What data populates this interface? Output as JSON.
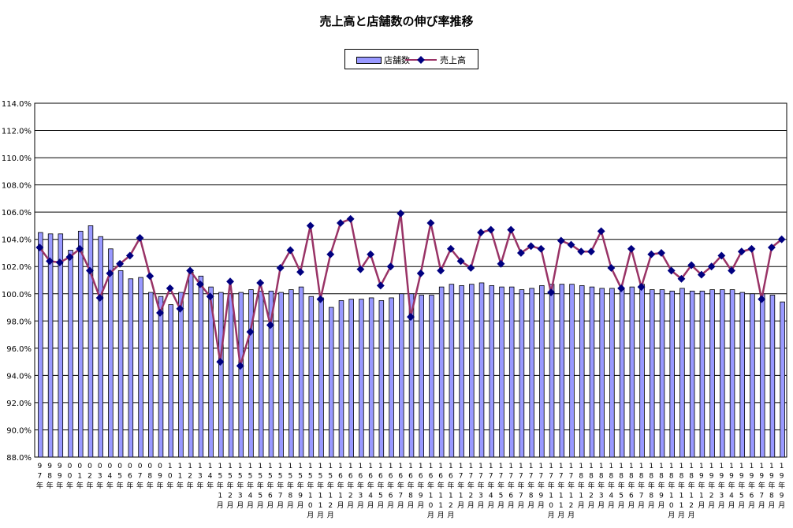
{
  "title": "売上高と店舗数の伸び率推移",
  "colors": {
    "bar_fill": "#9999ff",
    "bar_stroke": "#000000",
    "line": "#993366",
    "marker": "#000080"
  },
  "legend": {
    "bars_label": "店舗数",
    "line_label": "売上高"
  },
  "chart_data": {
    "type": "bar",
    "title": "売上高と店舗数の伸び率推移",
    "xlabel": "",
    "ylabel": "",
    "ylim": [
      88.0,
      114.0
    ],
    "y_tick_step": 2.0,
    "y_tick_labels": [
      "88.0%",
      "90.0%",
      "92.0%",
      "94.0%",
      "96.0%",
      "98.0%",
      "100.0%",
      "102.0%",
      "104.0%",
      "106.0%",
      "108.0%",
      "110.0%",
      "112.0%",
      "114.0%"
    ],
    "grid": true,
    "legend_position": "top-center",
    "categories": [
      "97年",
      "98年",
      "99年",
      "00年",
      "01年",
      "02年",
      "03年",
      "04年",
      "05年",
      "06年",
      "07年",
      "08年",
      "09年",
      "10年",
      "11年",
      "12年",
      "13年",
      "14年",
      "15年1月",
      "15年2月",
      "15年3月",
      "15年4月",
      "15年5月",
      "15年6月",
      "15年7月",
      "15年8月",
      "15年9月",
      "15年10月",
      "15年11月",
      "15年12月",
      "16年1月",
      "16年2月",
      "16年3月",
      "16年4月",
      "16年5月",
      "16年6月",
      "16年7月",
      "16年8月",
      "16年9月",
      "16年10月",
      "16年11月",
      "16年12月",
      "17年1月",
      "17年2月",
      "17年3月",
      "17年4月",
      "17年5月",
      "17年6月",
      "17年7月",
      "17年8月",
      "17年9月",
      "17年10月",
      "17年11月",
      "17年12月",
      "18年1月",
      "18年2月",
      "18年3月",
      "18年4月",
      "18年5月",
      "18年6月",
      "18年7月",
      "18年8月",
      "18年9月",
      "18年10月",
      "18年11月",
      "18年12月",
      "19年1月",
      "19年2月",
      "19年3月",
      "19年4月",
      "19年5月",
      "19年6月",
      "19年7月",
      "19年8月",
      "19年9月"
    ],
    "x_tick_labels": [
      [
        "9",
        "7",
        "年"
      ],
      [
        "9",
        "8",
        "年"
      ],
      [
        "9",
        "9",
        "年"
      ],
      [
        "0",
        "0",
        "年"
      ],
      [
        "0",
        "1",
        "年"
      ],
      [
        "0",
        "2",
        "年"
      ],
      [
        "0",
        "3",
        "年"
      ],
      [
        "0",
        "4",
        "年"
      ],
      [
        "0",
        "5",
        "年"
      ],
      [
        "0",
        "6",
        "年"
      ],
      [
        "0",
        "7",
        "年"
      ],
      [
        "0",
        "8",
        "年"
      ],
      [
        "0",
        "9",
        "年"
      ],
      [
        "1",
        "0",
        "年"
      ],
      [
        "1",
        "1",
        "年"
      ],
      [
        "1",
        "2",
        "年"
      ],
      [
        "1",
        "3",
        "年"
      ],
      [
        "1",
        "4",
        "年"
      ],
      [
        "1",
        "5",
        "年",
        "1",
        "月"
      ],
      [
        "1",
        "5",
        "年",
        "2",
        "月"
      ],
      [
        "1",
        "5",
        "年",
        "3",
        "月"
      ],
      [
        "1",
        "5",
        "年",
        "4",
        "月"
      ],
      [
        "1",
        "5",
        "年",
        "5",
        "月"
      ],
      [
        "1",
        "5",
        "年",
        "6",
        "月"
      ],
      [
        "1",
        "5",
        "年",
        "7",
        "月"
      ],
      [
        "1",
        "5",
        "年",
        "8",
        "月"
      ],
      [
        "1",
        "5",
        "年",
        "9",
        "月"
      ],
      [
        "1",
        "5",
        "年",
        "1",
        "0",
        "月"
      ],
      [
        "1",
        "5",
        "年",
        "1",
        "1",
        "月"
      ],
      [
        "1",
        "5",
        "年",
        "1",
        "2",
        "月"
      ],
      [
        "1",
        "6",
        "年",
        "1",
        "月"
      ],
      [
        "1",
        "6",
        "年",
        "2",
        "月"
      ],
      [
        "1",
        "6",
        "年",
        "3",
        "月"
      ],
      [
        "1",
        "6",
        "年",
        "4",
        "月"
      ],
      [
        "1",
        "6",
        "年",
        "5",
        "月"
      ],
      [
        "1",
        "6",
        "年",
        "6",
        "月"
      ],
      [
        "1",
        "6",
        "年",
        "7",
        "月"
      ],
      [
        "1",
        "6",
        "年",
        "8",
        "月"
      ],
      [
        "1",
        "6",
        "年",
        "9",
        "月"
      ],
      [
        "1",
        "6",
        "年",
        "1",
        "0",
        "月"
      ],
      [
        "1",
        "6",
        "年",
        "1",
        "1",
        "月"
      ],
      [
        "1",
        "6",
        "年",
        "1",
        "2",
        "月"
      ],
      [
        "1",
        "7",
        "年",
        "1",
        "月"
      ],
      [
        "1",
        "7",
        "年",
        "2",
        "月"
      ],
      [
        "1",
        "7",
        "年",
        "3",
        "月"
      ],
      [
        "1",
        "7",
        "年",
        "4",
        "月"
      ],
      [
        "1",
        "7",
        "年",
        "5",
        "月"
      ],
      [
        "1",
        "7",
        "年",
        "6",
        "月"
      ],
      [
        "1",
        "7",
        "年",
        "7",
        "月"
      ],
      [
        "1",
        "7",
        "年",
        "8",
        "月"
      ],
      [
        "1",
        "7",
        "年",
        "9",
        "月"
      ],
      [
        "1",
        "7",
        "年",
        "1",
        "0",
        "月"
      ],
      [
        "1",
        "7",
        "年",
        "1",
        "1",
        "月"
      ],
      [
        "1",
        "7",
        "年",
        "1",
        "2",
        "月"
      ],
      [
        "1",
        "8",
        "年",
        "1",
        "月"
      ],
      [
        "1",
        "8",
        "年",
        "2",
        "月"
      ],
      [
        "1",
        "8",
        "年",
        "3",
        "月"
      ],
      [
        "1",
        "8",
        "年",
        "4",
        "月"
      ],
      [
        "1",
        "8",
        "年",
        "5",
        "月"
      ],
      [
        "1",
        "8",
        "年",
        "6",
        "月"
      ],
      [
        "1",
        "8",
        "年",
        "7",
        "月"
      ],
      [
        "1",
        "8",
        "年",
        "8",
        "月"
      ],
      [
        "1",
        "8",
        "年",
        "9",
        "月"
      ],
      [
        "1",
        "8",
        "年",
        "1",
        "0",
        "月"
      ],
      [
        "1",
        "8",
        "年",
        "1",
        "1",
        "月"
      ],
      [
        "1",
        "8",
        "年",
        "1",
        "2",
        "月"
      ],
      [
        "1",
        "9",
        "年",
        "1",
        "月"
      ],
      [
        "1",
        "9",
        "年",
        "2",
        "月"
      ],
      [
        "1",
        "9",
        "年",
        "3",
        "月"
      ],
      [
        "1",
        "9",
        "年",
        "4",
        "月"
      ],
      [
        "1",
        "9",
        "年",
        "5",
        "月"
      ],
      [
        "1",
        "9",
        "年",
        "6",
        "月"
      ],
      [
        "1",
        "9",
        "年",
        "7",
        "月"
      ],
      [
        "1",
        "9",
        "年",
        "8",
        "月"
      ],
      [
        "1",
        "9",
        "年",
        "9",
        "月"
      ]
    ],
    "series": [
      {
        "name": "店舗数",
        "type": "bar",
        "values": [
          104.5,
          104.4,
          104.4,
          103.2,
          104.6,
          105.0,
          104.2,
          103.3,
          101.7,
          101.1,
          101.2,
          100.1,
          99.8,
          99.2,
          100.1,
          101.6,
          101.3,
          100.5,
          100.1,
          100.0,
          100.1,
          100.3,
          100.2,
          100.2,
          100.1,
          100.3,
          100.5,
          99.8,
          99.7,
          99.0,
          99.5,
          99.6,
          99.6,
          99.7,
          99.5,
          99.7,
          100.0,
          100.0,
          99.9,
          99.9,
          100.5,
          100.7,
          100.6,
          100.7,
          100.8,
          100.6,
          100.5,
          100.5,
          100.3,
          100.4,
          100.6,
          100.7,
          100.7,
          100.7,
          100.6,
          100.5,
          100.4,
          100.4,
          100.3,
          100.5,
          100.7,
          100.3,
          100.3,
          100.2,
          100.4,
          100.2,
          100.2,
          100.3,
          100.3,
          100.3,
          100.1,
          100.0,
          100.0,
          99.9,
          99.4
        ]
      },
      {
        "name": "売上高",
        "type": "line",
        "values": [
          103.4,
          102.4,
          102.3,
          102.7,
          103.3,
          101.7,
          99.7,
          101.5,
          102.2,
          102.8,
          104.1,
          101.3,
          98.6,
          100.4,
          98.9,
          101.7,
          100.7,
          99.8,
          95.0,
          100.9,
          94.7,
          97.2,
          100.8,
          97.7,
          101.9,
          103.2,
          101.6,
          105.0,
          99.6,
          102.9,
          105.2,
          105.5,
          101.8,
          102.9,
          100.6,
          102.0,
          105.9,
          98.3,
          101.5,
          105.2,
          101.7,
          103.3,
          102.4,
          101.9,
          104.5,
          104.7,
          102.2,
          104.7,
          103.0,
          103.5,
          103.3,
          100.1,
          103.9,
          103.6,
          103.1,
          103.1,
          104.6,
          101.9,
          100.4,
          103.3,
          100.5,
          102.9,
          103.0,
          101.7,
          101.1,
          102.1,
          101.4,
          102.0,
          102.8,
          101.7,
          103.1,
          103.3,
          99.6,
          103.4,
          104.0
        ]
      }
    ]
  }
}
